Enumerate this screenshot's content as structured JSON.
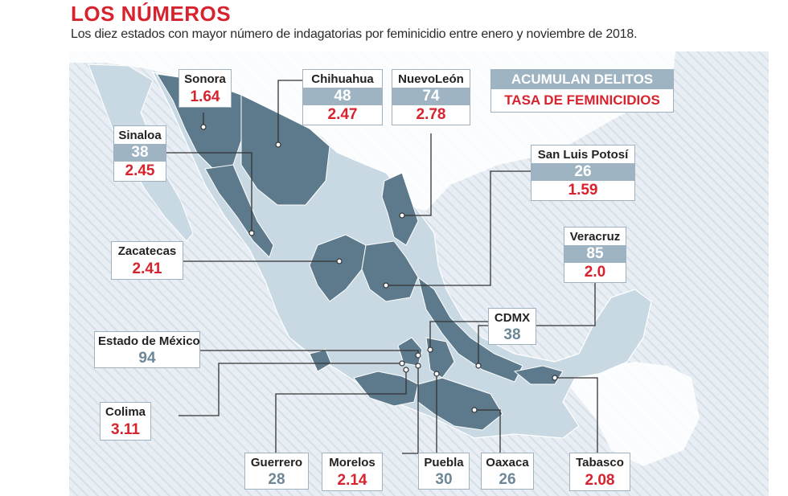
{
  "header": {
    "title": "LOS NÚMEROS",
    "subtitle": "Los diez estados con mayor número de indagatorias por feminicidio entre enero y noviembre de 2018."
  },
  "legend": {
    "count_label": "ACUMULAN DELITOS",
    "rate_label": "TASA DE FEMINICIDIOS"
  },
  "colors": {
    "title_red": "#d7232e",
    "highlight_state": "#5d7a8c",
    "other_state": "#c9d9e3",
    "band": "#9fb4c2"
  },
  "states": {
    "sonora": {
      "name": "Sonora",
      "rate": "1.64"
    },
    "chihuahua": {
      "name": "Chihuahua",
      "count": "48",
      "rate": "2.47"
    },
    "nuevoleon": {
      "name": "NuevoLeón",
      "count": "74",
      "rate": "2.78"
    },
    "sinaloa": {
      "name": "Sinaloa",
      "count": "38",
      "rate": "2.45"
    },
    "slp": {
      "name": "San Luis Potosí",
      "count": "26",
      "rate": "1.59"
    },
    "zacatecas": {
      "name": "Zacatecas",
      "rate": "2.41"
    },
    "veracruz": {
      "name": "Veracruz",
      "count": "85",
      "rate": "2.0"
    },
    "cdmx": {
      "name": "CDMX",
      "count": "38"
    },
    "edomex": {
      "name": "Estado de México",
      "count": "94"
    },
    "colima": {
      "name": "Colima",
      "rate": "3.11"
    },
    "guerrero": {
      "name": "Guerrero",
      "count": "28"
    },
    "morelos": {
      "name": "Morelos",
      "rate": "2.14"
    },
    "puebla": {
      "name": "Puebla",
      "count": "30"
    },
    "oaxaca": {
      "name": "Oaxaca",
      "count": "26"
    },
    "tabasco": {
      "name": "Tabasco",
      "rate": "2.08"
    }
  }
}
